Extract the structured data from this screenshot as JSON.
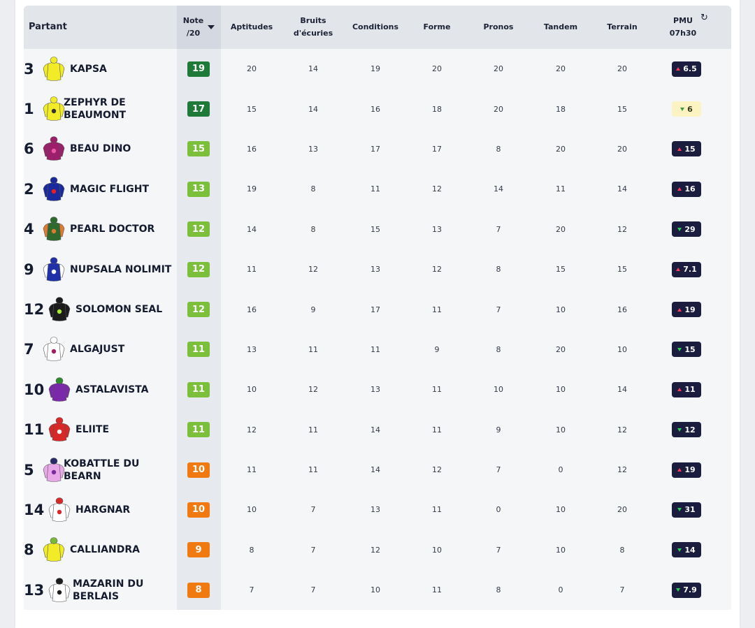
{
  "header": {
    "partant": "Partant",
    "note_line1": "Note",
    "note_line2": "/20",
    "aptitudes": "Aptitudes",
    "bruits_line1": "Bruits",
    "bruits_line2": "d'écuries",
    "conditions": "Conditions",
    "forme": "Forme",
    "pronos": "Pronos",
    "tandem": "Tandem",
    "terrain": "Terrain",
    "pmu_line1": "PMU",
    "pmu_line2": "07h30"
  },
  "score_colors": {
    "dark_green": "#1f7a3a",
    "green": "#7bbf3a",
    "orange": "#f07a10"
  },
  "rows": [
    {
      "num": "3",
      "name1": "KAPSA",
      "name2": "",
      "note": "19",
      "note_color": "dark_green",
      "aptitudes": "20",
      "bruits": "14",
      "conditions": "19",
      "forme": "20",
      "pronos": "20",
      "tandem": "20",
      "terrain": "20",
      "odds": "6.5",
      "trend": "up",
      "odds_style": "dark",
      "silk": {
        "body": "#f2ec28",
        "sleeve": "#f2ec28",
        "cap": "#f2ec28",
        "accent": "#f2ec28"
      }
    },
    {
      "num": "1",
      "name1": "ZEPHYR DE",
      "name2": "BEAUMONT",
      "note": "17",
      "note_color": "dark_green",
      "aptitudes": "15",
      "bruits": "14",
      "conditions": "16",
      "forme": "18",
      "pronos": "20",
      "tandem": "18",
      "terrain": "15",
      "odds": "6",
      "trend": "down",
      "odds_style": "light",
      "silk": {
        "body": "#f2ec28",
        "sleeve": "#f2ec28",
        "cap": "#f2ec28",
        "accent": "#333333"
      }
    },
    {
      "num": "6",
      "name1": "BEAU DINO",
      "name2": "",
      "note": "15",
      "note_color": "green",
      "aptitudes": "16",
      "bruits": "13",
      "conditions": "17",
      "forme": "17",
      "pronos": "8",
      "tandem": "20",
      "terrain": "20",
      "odds": "15",
      "trend": "up",
      "odds_style": "dark",
      "silk": {
        "body": "#9c1f6c",
        "sleeve": "#9c1f6c",
        "cap": "#9c1f6c",
        "accent": "#e85aa8"
      }
    },
    {
      "num": "2",
      "name1": "MAGIC FLIGHT",
      "name2": "",
      "note": "13",
      "note_color": "green",
      "aptitudes": "19",
      "bruits": "8",
      "conditions": "11",
      "forme": "12",
      "pronos": "14",
      "tandem": "11",
      "terrain": "14",
      "odds": "16",
      "trend": "up",
      "odds_style": "dark",
      "silk": {
        "body": "#1a2a9c",
        "sleeve": "#1a2a9c",
        "cap": "#1a2a9c",
        "accent": "#e82020"
      }
    },
    {
      "num": "4",
      "name1": "PEARL DOCTOR",
      "name2": "",
      "note": "12",
      "note_color": "green",
      "aptitudes": "14",
      "bruits": "8",
      "conditions": "15",
      "forme": "13",
      "pronos": "7",
      "tandem": "20",
      "terrain": "12",
      "odds": "29",
      "trend": "down",
      "odds_style": "dark",
      "silk": {
        "body": "#2e6a2e",
        "sleeve": "#e07a30",
        "cap": "#2e6a2e",
        "accent": "#e07a30"
      }
    },
    {
      "num": "9",
      "name1": "NUPSALA NOLIMIT",
      "name2": "",
      "note": "12",
      "note_color": "green",
      "aptitudes": "11",
      "bruits": "12",
      "conditions": "13",
      "forme": "12",
      "pronos": "8",
      "tandem": "15",
      "terrain": "15",
      "odds": "7.1",
      "trend": "up",
      "odds_style": "dark",
      "silk": {
        "body": "#2030a8",
        "sleeve": "#ffffff",
        "cap": "#2030a8",
        "accent": "#ffffff"
      }
    },
    {
      "num": "12",
      "name1": "SOLOMON SEAL",
      "name2": "",
      "note": "12",
      "note_color": "green",
      "aptitudes": "16",
      "bruits": "9",
      "conditions": "17",
      "forme": "11",
      "pronos": "7",
      "tandem": "10",
      "terrain": "16",
      "odds": "19",
      "trend": "up",
      "odds_style": "dark",
      "silk": {
        "body": "#1c1c1c",
        "sleeve": "#1c1c1c",
        "cap": "#1c1c1c",
        "accent": "#a8e83a"
      }
    },
    {
      "num": "7",
      "name1": "ALGAJUST",
      "name2": "",
      "note": "11",
      "note_color": "green",
      "aptitudes": "13",
      "bruits": "11",
      "conditions": "11",
      "forme": "9",
      "pronos": "8",
      "tandem": "20",
      "terrain": "10",
      "odds": "15",
      "trend": "down",
      "odds_style": "dark",
      "silk": {
        "body": "#ffffff",
        "sleeve": "#ffffff",
        "cap": "#ffffff",
        "accent": "#a02060"
      }
    },
    {
      "num": "10",
      "name1": "ASTALAVISTA",
      "name2": "",
      "note": "11",
      "note_color": "green",
      "aptitudes": "10",
      "bruits": "12",
      "conditions": "13",
      "forme": "11",
      "pronos": "10",
      "tandem": "10",
      "terrain": "14",
      "odds": "11",
      "trend": "up",
      "odds_style": "dark",
      "silk": {
        "body": "#7a2aa8",
        "sleeve": "#7a2aa8",
        "cap": "#2e8a2e",
        "accent": "#7a2aa8"
      }
    },
    {
      "num": "11",
      "name1": "ELIITE",
      "name2": "",
      "note": "11",
      "note_color": "green",
      "aptitudes": "12",
      "bruits": "11",
      "conditions": "14",
      "forme": "11",
      "pronos": "9",
      "tandem": "10",
      "terrain": "12",
      "odds": "12",
      "trend": "down",
      "odds_style": "dark",
      "silk": {
        "body": "#d82828",
        "sleeve": "#d82828",
        "cap": "#d82828",
        "accent": "#ffffff"
      }
    },
    {
      "num": "5",
      "name1": "KOBATTLE DU",
      "name2": "BEARN",
      "note": "10",
      "note_color": "orange",
      "aptitudes": "11",
      "bruits": "11",
      "conditions": "14",
      "forme": "12",
      "pronos": "7",
      "tandem": "0",
      "terrain": "12",
      "odds": "19",
      "trend": "up",
      "odds_style": "dark",
      "silk": {
        "body": "#e8a8e8",
        "sleeve": "#e8a8e8",
        "cap": "#2a2a6a",
        "accent": "#7a2a9c"
      }
    },
    {
      "num": "14",
      "name1": "HARGNAR",
      "name2": "",
      "note": "10",
      "note_color": "orange",
      "aptitudes": "10",
      "bruits": "7",
      "conditions": "13",
      "forme": "11",
      "pronos": "0",
      "tandem": "10",
      "terrain": "20",
      "odds": "31",
      "trend": "down",
      "odds_style": "dark",
      "silk": {
        "body": "#ffffff",
        "sleeve": "#ffffff",
        "cap": "#d82828",
        "accent": "#d82828"
      }
    },
    {
      "num": "8",
      "name1": "CALLIANDRA",
      "name2": "",
      "note": "9",
      "note_color": "orange",
      "aptitudes": "8",
      "bruits": "7",
      "conditions": "12",
      "forme": "10",
      "pronos": "7",
      "tandem": "10",
      "terrain": "8",
      "odds": "14",
      "trend": "down",
      "odds_style": "dark",
      "silk": {
        "body": "#f2ec28",
        "sleeve": "#f2ec28",
        "cap": "#7ab83a",
        "accent": "#f2ec28"
      }
    },
    {
      "num": "13",
      "name1": "MAZARIN DU",
      "name2": "BERLAIS",
      "note": "8",
      "note_color": "orange",
      "aptitudes": "7",
      "bruits": "7",
      "conditions": "10",
      "forme": "11",
      "pronos": "8",
      "tandem": "0",
      "terrain": "7",
      "odds": "7.9",
      "trend": "down",
      "odds_style": "dark",
      "silk": {
        "body": "#ffffff",
        "sleeve": "#ffffff",
        "cap": "#1c1c1c",
        "accent": "#1c1c1c"
      }
    }
  ]
}
